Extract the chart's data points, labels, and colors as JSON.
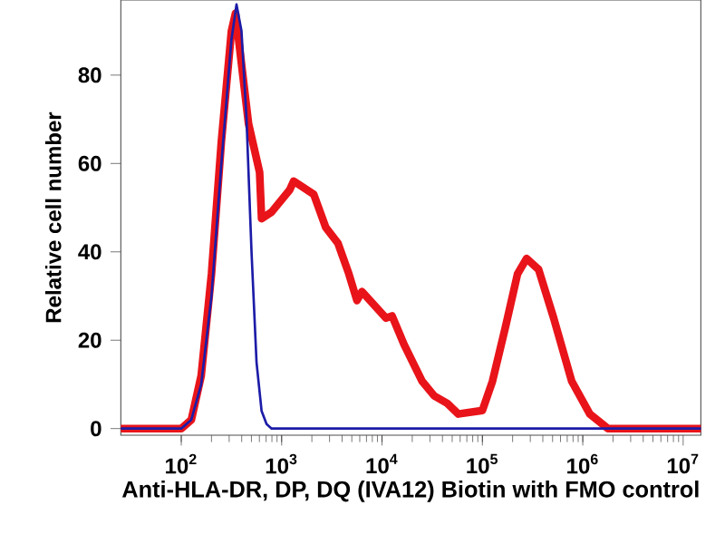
{
  "chart_data": {
    "type": "line",
    "xlabel": "Anti-HLA-DR, DP, DQ (IVA12) Biotin with FMO control",
    "ylabel": "Relative cell number",
    "log": "x",
    "xlim": [
      25,
      15000000
    ],
    "ylim": [
      -1.5,
      97
    ],
    "xticks": [
      {
        "value": 100,
        "label": "10$^{2}$"
      },
      {
        "value": 1000,
        "label": "10$^{3}$"
      },
      {
        "value": 10000,
        "label": "10$^{4}$"
      },
      {
        "value": 100000,
        "label": "10$^{5}$"
      },
      {
        "value": 1000000,
        "label": "10$^{6}$"
      },
      {
        "value": 10000000,
        "label": "10$^{7}$"
      }
    ],
    "yticks": [
      0,
      20,
      40,
      60,
      80
    ],
    "series": [
      {
        "color": "#e8141a",
        "x": [
          25,
          100,
          126,
          158,
          200,
          251,
          316,
          347,
          468,
          603,
          631,
          794,
          1202,
          1318,
          2089,
          2754,
          3631,
          4677,
          5623,
          6310,
          10965,
          12589,
          16596,
          25119,
          33113,
          44668,
          57544,
          100000,
          125893,
          169824,
          223872,
          275423,
          363078,
          512861,
          776247,
          1174898,
          1778279,
          15000000
        ],
        "values": [
          0,
          0,
          2,
          12,
          35,
          65,
          90,
          94,
          69,
          58,
          47.5,
          49,
          54,
          56,
          53,
          45.5,
          42,
          35,
          29,
          31,
          25,
          25.5,
          19,
          10.7,
          7.4,
          5.7,
          3.3,
          4.1,
          10.7,
          23,
          35,
          38.5,
          36,
          25,
          10.7,
          3.3,
          0,
          0
        ]
      },
      {
        "color": "#1c1ca8",
        "x": [
          25,
          100,
          126,
          158,
          200,
          251,
          316,
          355,
          398,
          447,
          501,
          562,
          631,
          708,
          794,
          15000000
        ],
        "values": [
          0,
          0,
          2,
          10,
          30,
          60,
          88,
          96,
          90,
          70,
          40,
          15,
          4,
          1,
          0,
          0
        ]
      }
    ]
  }
}
